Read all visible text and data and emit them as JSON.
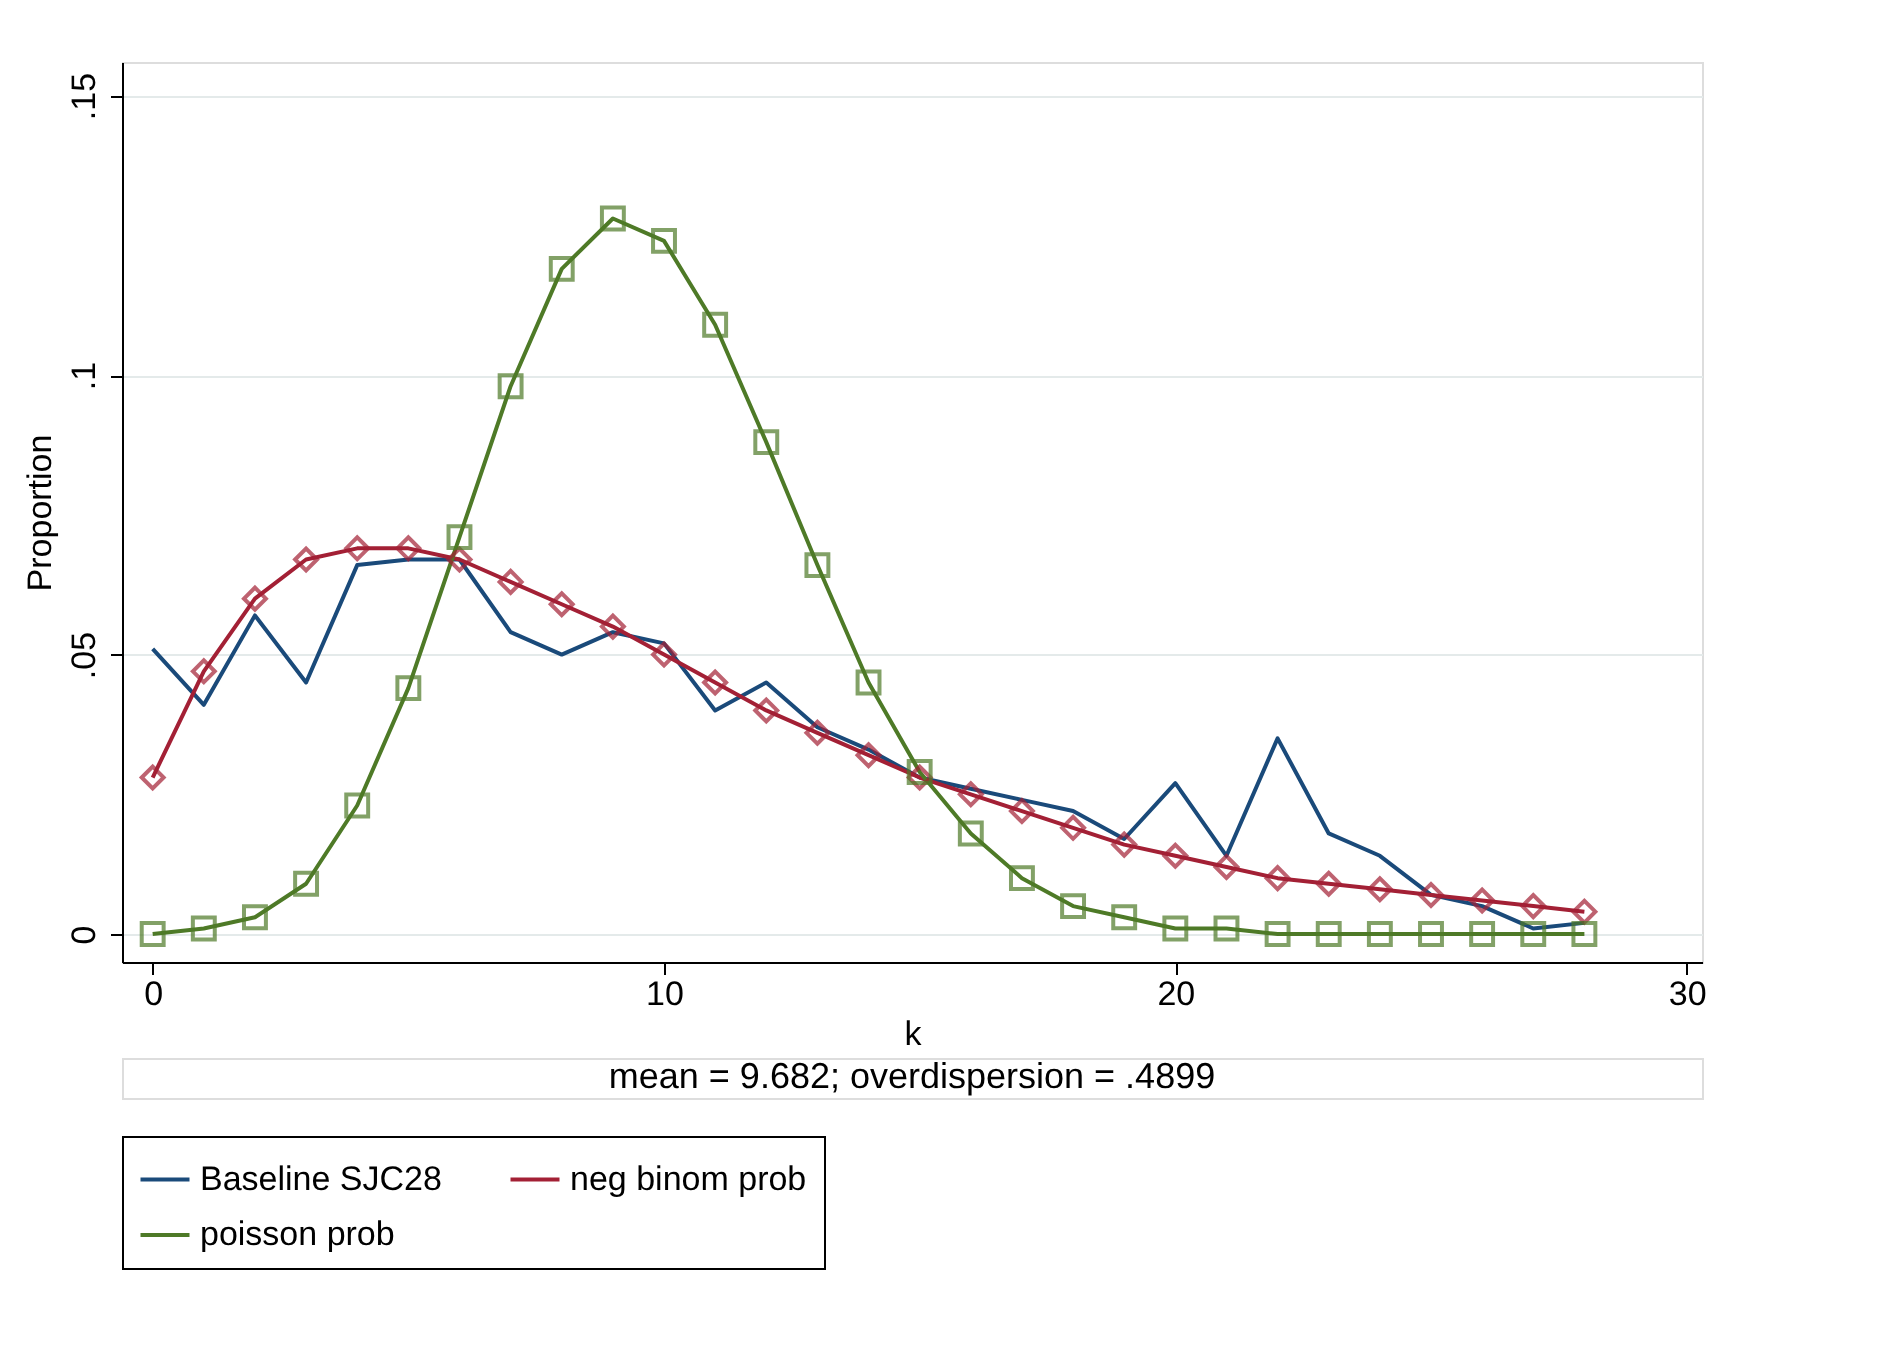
{
  "chart_data": {
    "type": "line",
    "xlabel": "k",
    "ylabel": "Proportion",
    "annotations": [
      "mean = 9.682; overdispersion = .4899"
    ],
    "x": [
      0,
      1,
      2,
      3,
      4,
      5,
      6,
      7,
      8,
      9,
      10,
      11,
      12,
      13,
      14,
      15,
      16,
      17,
      18,
      19,
      20,
      21,
      22,
      23,
      24,
      25,
      26,
      27,
      28
    ],
    "series": [
      {
        "name": "Baseline SJC28",
        "color": "#1a4a7a",
        "marker": "none",
        "values": [
          0.051,
          0.041,
          0.057,
          0.045,
          0.066,
          0.067,
          0.067,
          0.054,
          0.05,
          0.054,
          0.052,
          0.04,
          0.045,
          0.037,
          0.033,
          0.028,
          0.026,
          0.024,
          0.022,
          0.017,
          0.027,
          0.014,
          0.035,
          0.018,
          0.014,
          0.007,
          0.005,
          0.001,
          0.002
        ]
      },
      {
        "name": "neg binom prob",
        "color": "#a32035",
        "marker": "diamond",
        "values": [
          0.028,
          0.047,
          0.06,
          0.067,
          0.069,
          0.069,
          0.067,
          0.063,
          0.059,
          0.055,
          0.05,
          0.045,
          0.04,
          0.036,
          0.032,
          0.028,
          0.025,
          0.022,
          0.019,
          0.016,
          0.014,
          0.012,
          0.01,
          0.009,
          0.008,
          0.007,
          0.006,
          0.005,
          0.004
        ]
      },
      {
        "name": "poisson prob",
        "color": "#4e7a27",
        "marker": "square",
        "values": [
          0.0,
          0.001,
          0.003,
          0.009,
          0.023,
          0.044,
          0.071,
          0.098,
          0.119,
          0.128,
          0.124,
          0.109,
          0.088,
          0.066,
          0.045,
          0.029,
          0.018,
          0.01,
          0.005,
          0.003,
          0.001,
          0.001,
          0.0,
          0.0,
          0.0,
          0.0,
          0.0,
          0.0,
          0.0
        ]
      }
    ],
    "xlim": [
      -0.6,
      30.3
    ],
    "ylim": [
      -0.005,
      0.156
    ],
    "xticks": [
      0,
      10,
      20,
      30
    ],
    "yticks": [
      0,
      {
        "value": 0.05,
        "label": ".05"
      },
      {
        "value": 0.1,
        "label": ".1"
      },
      {
        "value": 0.15,
        "label": ".15"
      }
    ],
    "grid": "y",
    "legend": "bottom",
    "line_style": "solid"
  }
}
